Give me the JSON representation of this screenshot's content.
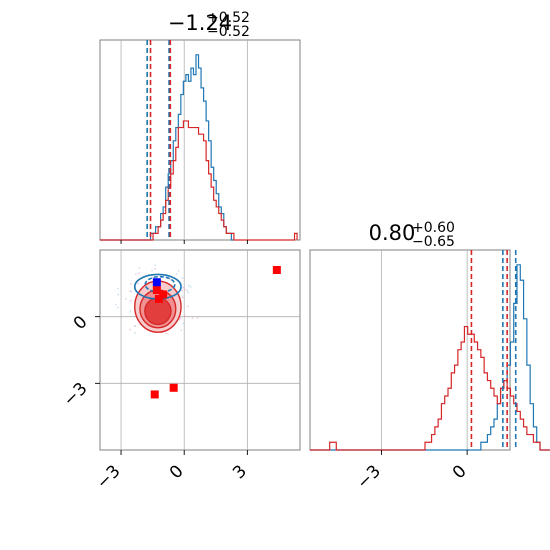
{
  "chart_data": [
    {
      "type": "histogram",
      "panel": "diag-1",
      "title_value": "−1.24",
      "title_plus": "+0.52",
      "title_minus": "−0.52",
      "xlim": [
        -4,
        5.5
      ],
      "grid": true,
      "bin_edges_start": -4.0,
      "bin_width": 0.12,
      "series": [
        {
          "color": "#1f77b4",
          "counts": [
            0,
            0,
            0,
            0,
            0,
            0,
            0,
            0,
            0,
            0,
            0,
            0,
            0,
            0,
            0,
            0,
            0,
            0,
            0,
            0,
            1,
            1,
            2,
            2,
            4,
            5,
            8,
            10,
            12,
            15,
            17,
            19,
            22,
            24,
            25,
            24,
            26,
            25,
            28,
            26,
            23,
            21,
            18,
            15,
            11,
            9,
            7,
            5,
            4,
            2,
            1,
            1,
            0
          ]
        },
        {
          "color": "#d62728",
          "counts": [
            0,
            0,
            0,
            0,
            0,
            0,
            0,
            0,
            0,
            0,
            0,
            0,
            0,
            0,
            0,
            0,
            0,
            0,
            0,
            0,
            0,
            1,
            1,
            2,
            3,
            4,
            6,
            8,
            10,
            12,
            14,
            17,
            17,
            18,
            18,
            17,
            17,
            17,
            17,
            16,
            16,
            15,
            12,
            10,
            8,
            6,
            5,
            4,
            3,
            2,
            1,
            1,
            1,
            0,
            0,
            0,
            0,
            0,
            0,
            0,
            0,
            0,
            0,
            0,
            0,
            0,
            0,
            0,
            0,
            0,
            0,
            0,
            0,
            0,
            0,
            0,
            0,
            1
          ]
        }
      ],
      "vlines": [
        {
          "x": -1.76,
          "color": "#1f77b4"
        },
        {
          "x": -0.72,
          "color": "#1f77b4"
        },
        {
          "x": -1.6,
          "color": "#d62728"
        },
        {
          "x": -0.66,
          "color": "#d62728"
        }
      ]
    },
    {
      "type": "histogram",
      "panel": "diag-2",
      "title_value": "0.80",
      "title_plus": "+0.60",
      "title_minus": "−0.65",
      "xlim": [
        -5.5,
        1.5
      ],
      "xticks": [
        -3,
        0
      ],
      "grid": true,
      "bin_edges_start": -5.5,
      "bin_width": 0.115,
      "series": [
        {
          "color": "#1f77b4",
          "counts": [
            0,
            0,
            0,
            0,
            0,
            0,
            0,
            0,
            0,
            0,
            0,
            0,
            0,
            0,
            0,
            0,
            0,
            0,
            0,
            0,
            0,
            0,
            0,
            0,
            0,
            0,
            0,
            0,
            0,
            0,
            0,
            0,
            0,
            0,
            0,
            0,
            0,
            0,
            0,
            0,
            0,
            0,
            0,
            0,
            0,
            0,
            0,
            0,
            0,
            0,
            0,
            0,
            1,
            1,
            2,
            3,
            4,
            6,
            8,
            9,
            11,
            14,
            19,
            24,
            22,
            17,
            11,
            6,
            3,
            1,
            0,
            0,
            0
          ]
        },
        {
          "color": "#d62728",
          "counts": [
            0,
            0,
            0,
            0,
            0,
            0,
            1,
            1,
            0,
            0,
            0,
            0,
            0,
            0,
            0,
            0,
            0,
            0,
            0,
            0,
            0,
            0,
            0,
            0,
            0,
            0,
            0,
            0,
            0,
            0,
            0,
            0,
            0,
            0,
            0,
            1,
            1,
            2,
            3,
            4,
            6,
            7,
            8,
            10,
            11,
            13,
            14,
            16,
            15,
            15,
            14,
            13,
            12,
            10,
            9,
            8,
            7,
            6,
            8,
            9,
            8,
            7,
            6,
            5,
            4,
            3,
            2,
            2,
            1,
            1,
            0,
            0,
            0
          ]
        }
      ],
      "vlines": [
        {
          "x": 0.15,
          "color": "#d62728"
        },
        {
          "x": 1.25,
          "color": "#1f77b4"
        },
        {
          "x": 1.4,
          "color": "#d62728"
        },
        {
          "x": 1.7,
          "color": "#1f77b4"
        }
      ]
    },
    {
      "type": "scatter",
      "panel": "corner-2d",
      "xlim": [
        -4,
        5.5
      ],
      "ylim": [
        -6,
        3
      ],
      "xticks": [
        -3,
        0,
        3
      ],
      "yticks": [
        0,
        -3
      ],
      "grid": true,
      "red_square_markers": [
        {
          "x": -1.3,
          "y": 1.2
        },
        {
          "x": -1.2,
          "y": 0.8
        },
        {
          "x": -1.0,
          "y": 1.0
        },
        {
          "x": 4.4,
          "y": 2.1
        },
        {
          "x": -0.5,
          "y": -3.2
        },
        {
          "x": -1.4,
          "y": -3.5
        }
      ],
      "blue_square_markers": [
        {
          "x": -1.3,
          "y": 1.55
        }
      ],
      "red_contours": [
        {
          "cx": -1.25,
          "cy": 0.45,
          "rx": 1.1,
          "ry": 1.15,
          "fill": "#f6c6c6",
          "opacity": 0.9
        },
        {
          "cx": -1.25,
          "cy": 0.35,
          "rx": 0.85,
          "ry": 0.85,
          "fill": "#ee8a8a",
          "opacity": 0.9
        },
        {
          "cx": -1.25,
          "cy": 0.25,
          "rx": 0.62,
          "ry": 0.6,
          "fill": "#e13a3a",
          "opacity": 0.95
        }
      ],
      "blue_contours": [
        {
          "cx": -1.25,
          "cy": 1.35,
          "rx": 1.1,
          "ry": 0.55
        },
        {
          "cx": -1.15,
          "cy": 1.45,
          "rx": 0.7,
          "ry": 0.35
        }
      ]
    }
  ]
}
